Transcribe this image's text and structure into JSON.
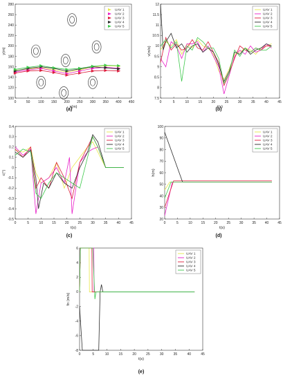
{
  "colors": {
    "uav1": "#e8e84a",
    "uav2": "#e81ec8",
    "uav3": "#dd1a3a",
    "uav4": "#2a2a2a",
    "uav5": "#3cc84a"
  },
  "chart_data": [
    {
      "type": "line",
      "panel_label": "(a)",
      "xlabel": "x(m)",
      "ylabel": "y(m)",
      "xlim": [
        0,
        450
      ],
      "ylim": [
        100,
        280
      ],
      "xticks": [
        0,
        50,
        100,
        150,
        200,
        250,
        300,
        350,
        400,
        450
      ],
      "yticks": [
        100,
        120,
        140,
        160,
        180,
        200,
        220,
        240,
        260,
        280
      ],
      "legend": "top-right",
      "obstacles": [
        {
          "x": 220,
          "y": 250
        },
        {
          "x": 80,
          "y": 190
        },
        {
          "x": 195,
          "y": 172
        },
        {
          "x": 315,
          "y": 198
        },
        {
          "x": 100,
          "y": 130
        },
        {
          "x": 188,
          "y": 110
        },
        {
          "x": 300,
          "y": 130
        }
      ],
      "series": [
        {
          "name": "UAV 1",
          "color_key": "uav1",
          "x": [
            0,
            50,
            100,
            150,
            200,
            250,
            300,
            350,
            400
          ],
          "y": [
            153,
            156,
            158,
            154,
            150,
            154,
            160,
            162,
            161
          ]
        },
        {
          "name": "UAV 2",
          "color_key": "uav2",
          "x": [
            0,
            50,
            100,
            150,
            200,
            250,
            300,
            350,
            400
          ],
          "y": [
            150,
            154,
            157,
            152,
            147,
            152,
            157,
            159,
            157
          ]
        },
        {
          "name": "UAV 3",
          "color_key": "uav3",
          "x": [
            0,
            50,
            100,
            150,
            200,
            250,
            300,
            350,
            400
          ],
          "y": [
            148,
            152,
            153,
            149,
            144,
            148,
            152,
            153,
            152
          ]
        },
        {
          "name": "UAV 4",
          "color_key": "uav4",
          "x": [
            0,
            50,
            100,
            150,
            200,
            250,
            300,
            350,
            400
          ],
          "y": [
            152,
            157,
            160,
            157,
            152,
            156,
            160,
            158,
            156
          ]
        },
        {
          "name": "UAV 5",
          "color_key": "uav5",
          "x": [
            0,
            50,
            100,
            150,
            200,
            250,
            300,
            350,
            400
          ],
          "y": [
            155,
            159,
            162,
            158,
            155,
            157,
            161,
            163,
            162
          ]
        }
      ]
    },
    {
      "type": "line",
      "panel_label": "(b)",
      "xlabel": "t(s)",
      "ylabel": "v(m/s)",
      "xlim": [
        0,
        45
      ],
      "ylim": [
        7.5,
        12
      ],
      "xticks": [
        0,
        5,
        10,
        15,
        20,
        25,
        30,
        35,
        40,
        45
      ],
      "yticks": [
        7.5,
        8,
        8.5,
        9,
        9.5,
        10,
        10.5,
        11,
        11.5,
        12
      ],
      "legend": "top-right",
      "series": [
        {
          "name": "UAV 1",
          "color_key": "uav1",
          "x": [
            0,
            2,
            4,
            6,
            8,
            10,
            12,
            14,
            16,
            18,
            20,
            22,
            24,
            26,
            28,
            30,
            32,
            34,
            36,
            38,
            40,
            42
          ],
          "y": [
            9.8,
            10.2,
            10.0,
            10.3,
            9.6,
            10.1,
            9.9,
            10.3,
            10.0,
            9.9,
            9.6,
            8.8,
            8.4,
            8.9,
            9.6,
            9.7,
            9.9,
            9.8,
            9.6,
            9.9,
            10.0,
            10.1
          ]
        },
        {
          "name": "UAV 2",
          "color_key": "uav2",
          "x": [
            0,
            2,
            4,
            6,
            8,
            10,
            12,
            14,
            16,
            18,
            20,
            22,
            24,
            26,
            28,
            30,
            32,
            34,
            36,
            38,
            40,
            42
          ],
          "y": [
            9.4,
            9.0,
            10.2,
            10.0,
            9.4,
            10.1,
            10.1,
            10.2,
            9.7,
            10.0,
            9.5,
            9.0,
            7.7,
            8.6,
            9.5,
            9.8,
            9.6,
            10.0,
            9.7,
            9.8,
            10.1,
            9.9
          ]
        },
        {
          "name": "UAV 3",
          "color_key": "uav3",
          "x": [
            0,
            2,
            4,
            6,
            8,
            10,
            12,
            14,
            16,
            18,
            20,
            22,
            24,
            26,
            28,
            30,
            32,
            34,
            36,
            38,
            40,
            42
          ],
          "y": [
            9.2,
            10.4,
            9.8,
            10.1,
            9.8,
            9.9,
            10.3,
            9.9,
            9.8,
            10.2,
            9.7,
            9.2,
            8.1,
            8.7,
            9.4,
            10.0,
            9.8,
            9.7,
            9.9,
            9.8,
            10.0,
            10.0
          ]
        },
        {
          "name": "UAV 4",
          "color_key": "uav4",
          "x": [
            0,
            1,
            2,
            4,
            6,
            8,
            10,
            12,
            14,
            16,
            18,
            20,
            22,
            24,
            26,
            28,
            30,
            32,
            34,
            36,
            38,
            40,
            42
          ],
          "y": [
            12.0,
            9.8,
            10.2,
            10.6,
            9.9,
            10.1,
            9.7,
            10.0,
            10.1,
            9.7,
            9.9,
            9.7,
            9.1,
            8.3,
            8.8,
            9.7,
            9.6,
            9.9,
            9.6,
            9.8,
            9.9,
            10.1,
            10.0
          ]
        },
        {
          "name": "UAV 5",
          "color_key": "uav5",
          "x": [
            0,
            2,
            4,
            6,
            8,
            10,
            12,
            14,
            16,
            18,
            20,
            22,
            24,
            26,
            28,
            30,
            32,
            34,
            36,
            38,
            40,
            42
          ],
          "y": [
            10.0,
            10.3,
            9.9,
            10.2,
            8.3,
            10.0,
            9.8,
            10.4,
            10.2,
            9.9,
            9.9,
            9.4,
            8.2,
            8.7,
            9.8,
            9.5,
            9.9,
            9.7,
            9.9,
            9.8,
            9.8,
            10.0
          ]
        }
      ]
    },
    {
      "type": "line",
      "panel_label": "(c)",
      "xlabel": "t(s)",
      "ylabel": "c(°)",
      "xlim": [
        0,
        45
      ],
      "ylim": [
        -0.5,
        0.4
      ],
      "xticks": [
        0,
        5,
        10,
        15,
        20,
        25,
        30,
        35,
        40,
        45
      ],
      "yticks": [
        -0.5,
        -0.4,
        -0.3,
        -0.2,
        -0.1,
        0,
        0.1,
        0.2,
        0.3,
        0.4
      ],
      "legend": "top-right",
      "series": [
        {
          "name": "UAV 1",
          "color_key": "uav1",
          "x": [
            0,
            3,
            6,
            8,
            10,
            13,
            16,
            19,
            22,
            25,
            28,
            30,
            32,
            35,
            42
          ],
          "y": [
            0.17,
            0.15,
            0.2,
            -0.05,
            -0.15,
            -0.1,
            0.05,
            -0.2,
            0.0,
            0.1,
            0.2,
            0.25,
            0.15,
            0.0,
            0.0
          ]
        },
        {
          "name": "UAV 2",
          "color_key": "uav2",
          "x": [
            0,
            3,
            6,
            8,
            10,
            13,
            16,
            19,
            21,
            22,
            25,
            28,
            30,
            32,
            35,
            42
          ],
          "y": [
            0.2,
            0.12,
            0.18,
            -0.45,
            -0.15,
            -0.1,
            0.0,
            -0.15,
            0.1,
            -0.45,
            0.05,
            0.15,
            0.18,
            0.2,
            0.0,
            0.0
          ]
        },
        {
          "name": "UAV 3",
          "color_key": "uav3",
          "x": [
            0,
            3,
            6,
            8,
            10,
            13,
            16,
            19,
            22,
            25,
            28,
            30,
            32,
            35,
            42
          ],
          "y": [
            0.18,
            0.1,
            0.2,
            -0.2,
            -0.1,
            -0.2,
            0.05,
            -0.1,
            -0.3,
            0.05,
            0.2,
            0.3,
            0.2,
            0.0,
            0.0
          ]
        },
        {
          "name": "UAV 4",
          "color_key": "uav4",
          "x": [
            0,
            3,
            6,
            8,
            9,
            11,
            13,
            16,
            19,
            22,
            25,
            28,
            30,
            32,
            35,
            42
          ],
          "y": [
            0.15,
            0.1,
            0.17,
            -0.1,
            -0.4,
            -0.15,
            -0.2,
            -0.05,
            -0.15,
            -0.2,
            0.0,
            0.15,
            0.32,
            0.25,
            0.0,
            0.0
          ]
        },
        {
          "name": "UAV 5",
          "color_key": "uav5",
          "x": [
            0,
            3,
            6,
            8,
            10,
            13,
            16,
            19,
            22,
            25,
            28,
            30,
            32,
            35,
            42
          ],
          "y": [
            0.12,
            0.18,
            0.15,
            -0.25,
            -0.3,
            -0.15,
            -0.05,
            -0.1,
            -0.15,
            -0.2,
            0.1,
            0.3,
            0.2,
            0.0,
            0.0
          ]
        }
      ]
    },
    {
      "type": "line",
      "panel_label": "(d)",
      "xlabel": "t(s)",
      "ylabel": "h(m)",
      "xlim": [
        0,
        45
      ],
      "ylim": [
        20,
        100
      ],
      "xticks": [
        0,
        5,
        10,
        15,
        20,
        25,
        30,
        35,
        40,
        45
      ],
      "yticks": [
        20,
        30,
        40,
        50,
        60,
        70,
        80,
        90,
        100
      ],
      "legend": "top-right",
      "series": [
        {
          "name": "UAV 1",
          "color_key": "uav1",
          "x": [
            0,
            2,
            42
          ],
          "y": [
            45,
            52,
            52
          ]
        },
        {
          "name": "UAV 2",
          "color_key": "uav2",
          "x": [
            0,
            3,
            42
          ],
          "y": [
            23,
            52,
            52
          ]
        },
        {
          "name": "UAV 3",
          "color_key": "uav3",
          "x": [
            0,
            3.5,
            42
          ],
          "y": [
            30,
            53,
            53
          ]
        },
        {
          "name": "UAV 4",
          "color_key": "uav4",
          "x": [
            0,
            7,
            42
          ],
          "y": [
            95,
            52,
            52
          ]
        },
        {
          "name": "UAV 5",
          "color_key": "uav5",
          "x": [
            0,
            2.5,
            42
          ],
          "y": [
            38,
            52,
            52
          ]
        }
      ]
    },
    {
      "type": "line",
      "panel_label": "(e)",
      "xlabel": "t(s)",
      "ylabel": "fn (m/s)",
      "xlim": [
        0,
        45
      ],
      "ylim": [
        -8,
        6
      ],
      "xticks": [
        0,
        5,
        10,
        15,
        20,
        25,
        30,
        35,
        40,
        45
      ],
      "yticks": [
        -8,
        -6,
        -4,
        -2,
        0,
        2,
        4,
        6
      ],
      "legend": "top-right",
      "series": [
        {
          "name": "UAV 1",
          "color_key": "uav1",
          "x": [
            0,
            0.3,
            3.5,
            3.6,
            42
          ],
          "y": [
            0,
            6,
            6,
            0,
            0
          ]
        },
        {
          "name": "UAV 2",
          "color_key": "uav2",
          "x": [
            0,
            0.3,
            5.2,
            5.3,
            42
          ],
          "y": [
            0,
            6,
            6,
            0,
            0
          ]
        },
        {
          "name": "UAV 3",
          "color_key": "uav3",
          "x": [
            0,
            0.3,
            4.5,
            4.6,
            42
          ],
          "y": [
            0,
            6,
            6,
            0,
            0
          ]
        },
        {
          "name": "UAV 4",
          "color_key": "uav4",
          "x": [
            0,
            1,
            1.5,
            7,
            7.5,
            8,
            8.5,
            42
          ],
          "y": [
            -2,
            -8,
            -8,
            -8,
            0,
            1,
            0,
            0
          ]
        },
        {
          "name": "UAV 5",
          "color_key": "uav5",
          "x": [
            0,
            0.3,
            4.8,
            5.6,
            6,
            42
          ],
          "y": [
            0,
            6,
            6,
            -1,
            0,
            0
          ]
        }
      ]
    }
  ]
}
